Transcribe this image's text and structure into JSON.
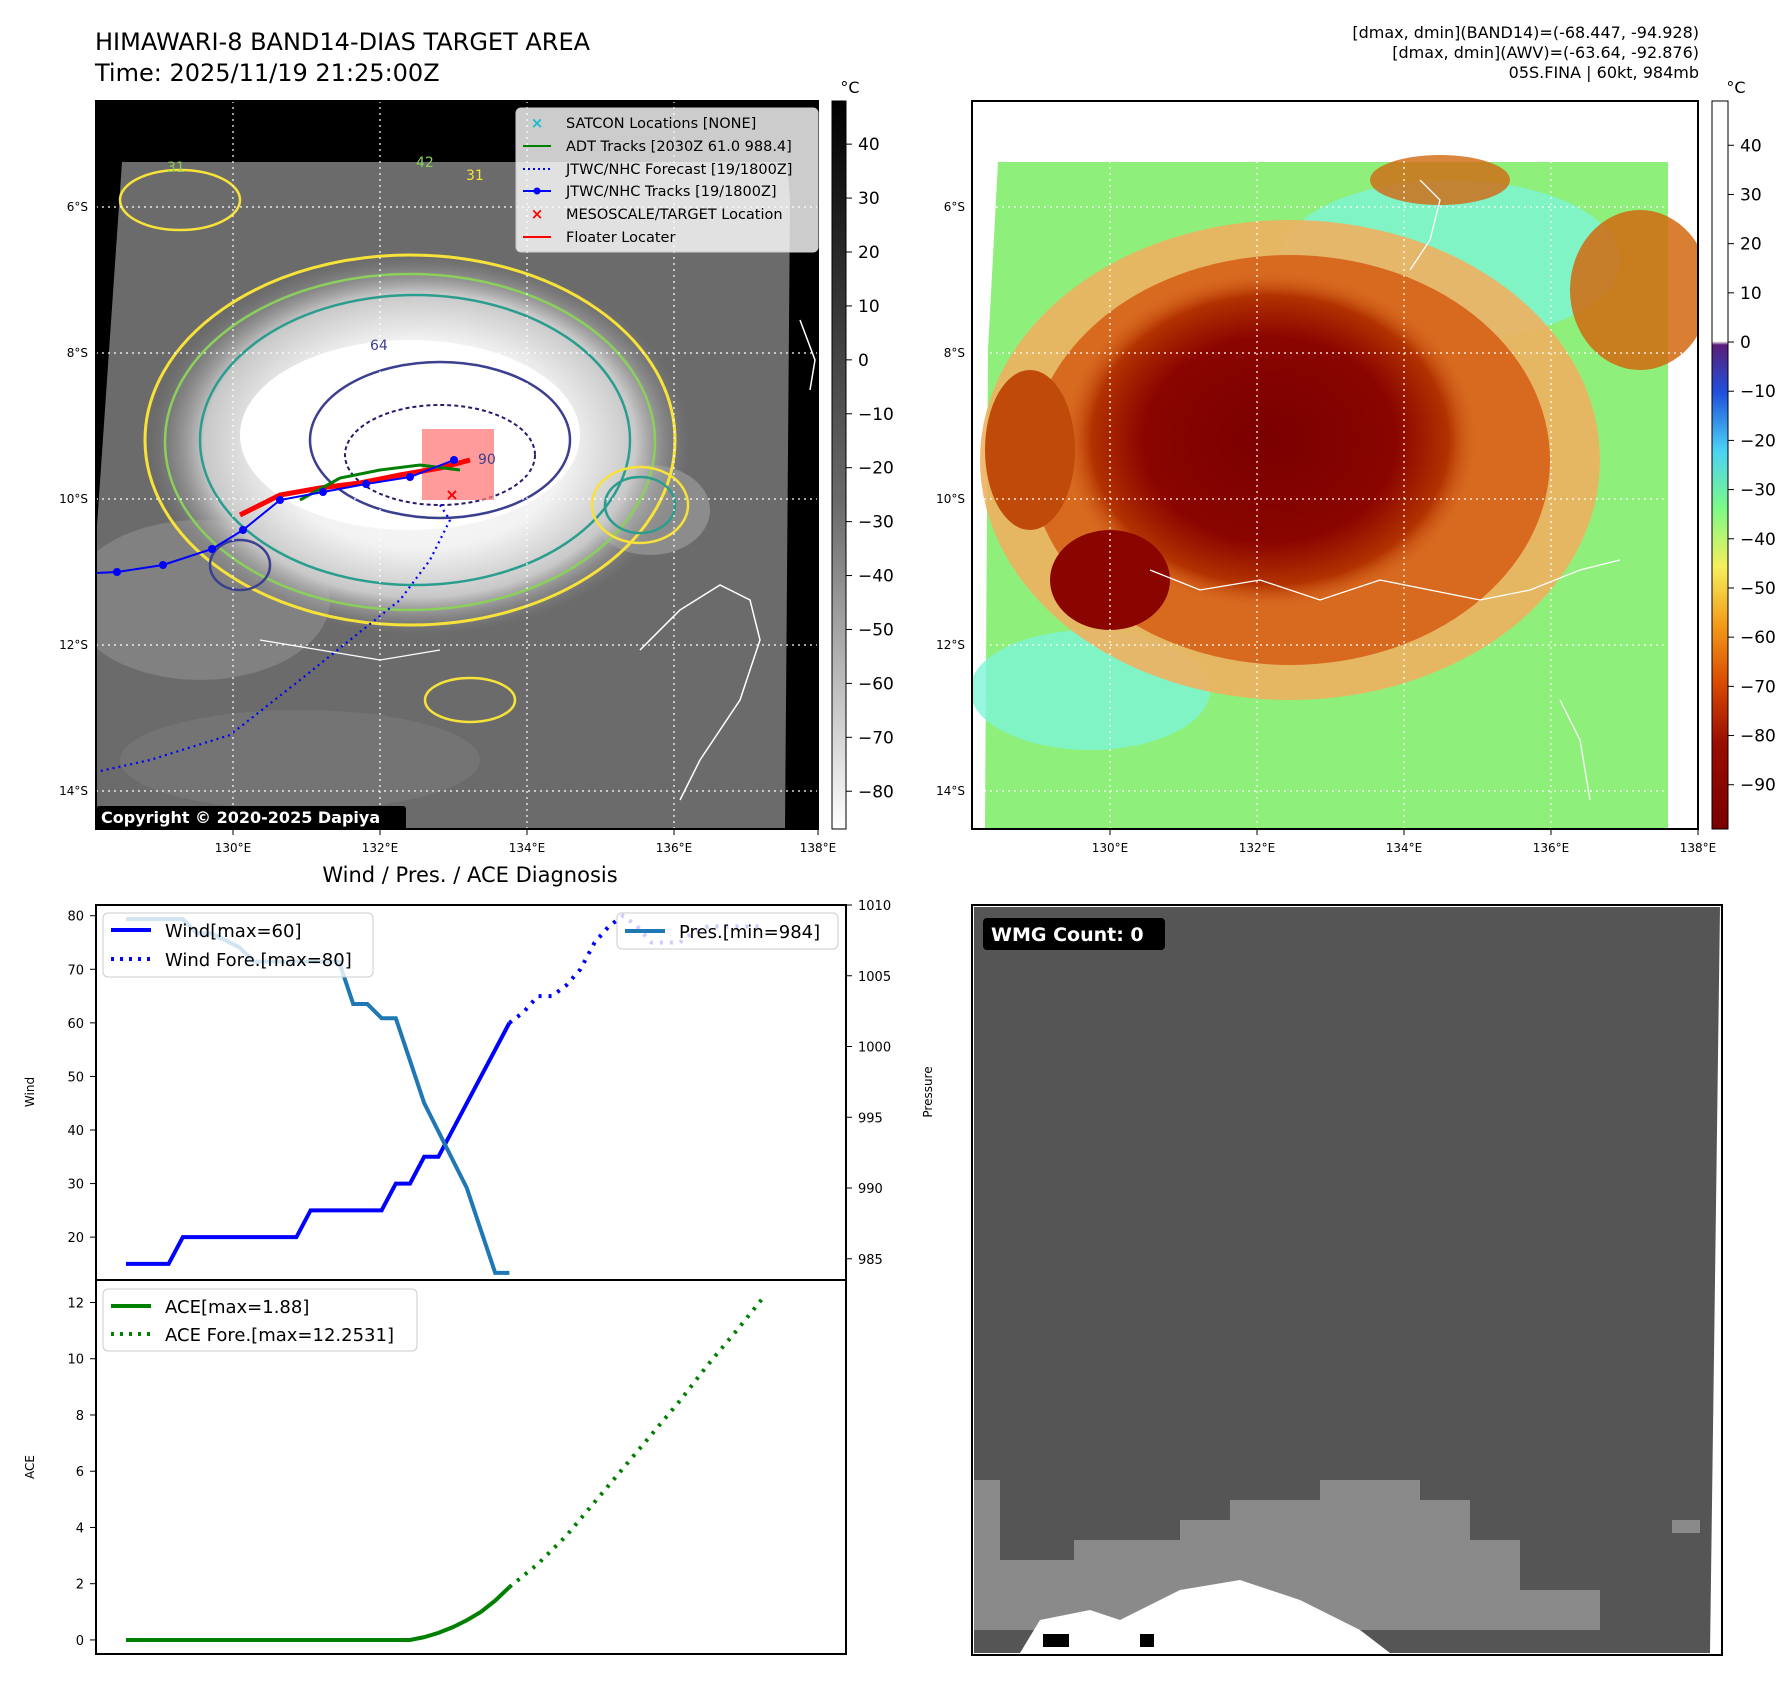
{
  "header": {
    "title_line1": "HIMAWARI-8 BAND14-DIAS TARGET AREA",
    "title_line2": "Time: 2025/11/19 21:25:00Z",
    "info_line1": "[dmax, dmin](BAND14)=(-68.447, -94.928)",
    "info_line2": "[dmax, dmin](AWV)=(-63.64, -92.876)",
    "info_line3": "05S.FINA | 60kt, 984mb"
  },
  "map_panel": {
    "lon_labels": [
      "130°E",
      "132°E",
      "134°E",
      "136°E",
      "138°E"
    ],
    "lat_labels": [
      "6°S",
      "8°S",
      "10°S",
      "12°S",
      "14°S"
    ],
    "copyright": "Copyright © 2020-2025 Dapiya",
    "legend": [
      {
        "label": "SATCON Locations [NONE]",
        "color": "#17becf",
        "marker": "x"
      },
      {
        "label": "ADT Tracks [2030Z 61.0 988.4]",
        "color": "#008000",
        "marker": "line"
      },
      {
        "label": "JTWC/NHC Forecast [19/1800Z]",
        "color": "#0000ff",
        "marker": "dotted"
      },
      {
        "label": "JTWC/NHC Tracks [19/1800Z]",
        "color": "#0000ff",
        "marker": "line-dot"
      },
      {
        "label": "MESOSCALE/TARGET Location",
        "color": "#ff0000",
        "marker": "x"
      },
      {
        "label": "Floater Locater",
        "color": "#ff0000",
        "marker": "line"
      }
    ],
    "contour_labels": [
      "31",
      "42",
      "31",
      "64",
      "90"
    ]
  },
  "colorbar_gray": {
    "unit": "°C",
    "ticks": [
      "40",
      "30",
      "20",
      "10",
      "0",
      "−10",
      "−20",
      "−30",
      "−40",
      "−50",
      "−60",
      "−70",
      "−80"
    ]
  },
  "colorbar_color": {
    "unit": "°C",
    "ticks": [
      "40",
      "30",
      "20",
      "10",
      "0",
      "−10",
      "−20",
      "−30",
      "−40",
      "−50",
      "−60",
      "−70",
      "−80",
      "−90"
    ]
  },
  "wmg_panel": {
    "label": "WMG Count: 0"
  },
  "chart_data": [
    {
      "type": "line",
      "title": "Wind / Pres. / ACE Diagnosis",
      "ylabel": "Wind",
      "ylabel_right": "Pressure",
      "ylim": [
        12,
        82
      ],
      "ylim_right": [
        983.5,
        1010
      ],
      "yticks": [
        "80",
        "70",
        "60",
        "50",
        "40",
        "30",
        "20"
      ],
      "yticks_right": [
        "1010",
        "1005",
        "1000",
        "995",
        "990",
        "985"
      ],
      "series": [
        {
          "name": "Wind[max=60]",
          "color": "#0000ff",
          "style": "solid",
          "x": [
            0,
            3,
            4,
            12,
            13,
            17,
            18,
            19,
            20,
            21,
            22,
            23,
            24,
            25,
            26,
            27
          ],
          "values": [
            15,
            15,
            20,
            20,
            25,
            25,
            25,
            30,
            30,
            35,
            35,
            40,
            45,
            50,
            55,
            60
          ]
        },
        {
          "name": "Wind Fore.[max=80]",
          "color": "#0000ff",
          "style": "dotted",
          "x": [
            27,
            28,
            29,
            30,
            31,
            32,
            33,
            34,
            35,
            36,
            37,
            38,
            39,
            40,
            41,
            42,
            43,
            44,
            45
          ],
          "values": [
            60,
            62,
            65,
            65,
            67,
            70,
            75,
            78,
            80,
            78,
            75,
            75,
            75,
            77,
            78,
            78,
            78,
            78,
            78
          ]
        },
        {
          "name": "Pres.[min=984]",
          "color": "#1f77b4",
          "style": "solid",
          "x": [
            0,
            3,
            4,
            5,
            6,
            8,
            9,
            10,
            11,
            15,
            16,
            17,
            18,
            19,
            20,
            21,
            22,
            23,
            24,
            25,
            26,
            27
          ],
          "values": [
            1009,
            1009,
            1009,
            1008,
            1008,
            1007,
            1006,
            1006,
            1006,
            1006,
            1003,
            1003,
            1002,
            1002,
            999,
            996,
            994,
            992,
            990,
            987,
            984,
            984
          ]
        }
      ]
    },
    {
      "type": "line",
      "ylabel": "ACE",
      "ylim": [
        -0.5,
        12.8
      ],
      "yticks": [
        "12",
        "10",
        "8",
        "6",
        "4",
        "2",
        "0"
      ],
      "series": [
        {
          "name": "ACE[max=1.88]",
          "color": "#008000",
          "style": "solid",
          "x": [
            0,
            5,
            10,
            15,
            20,
            21,
            22,
            23,
            24,
            25,
            26,
            27
          ],
          "values": [
            0,
            0,
            0,
            0,
            0,
            0.1,
            0.25,
            0.45,
            0.7,
            1.0,
            1.4,
            1.88
          ]
        },
        {
          "name": "ACE Fore.[max=12.2531]",
          "color": "#008000",
          "style": "dotted",
          "x": [
            27,
            29,
            31,
            33,
            35,
            37,
            39,
            41,
            43,
            45
          ],
          "values": [
            1.88,
            2.7,
            3.7,
            4.9,
            6.1,
            7.3,
            8.5,
            9.8,
            11.0,
            12.2531
          ]
        }
      ]
    }
  ]
}
